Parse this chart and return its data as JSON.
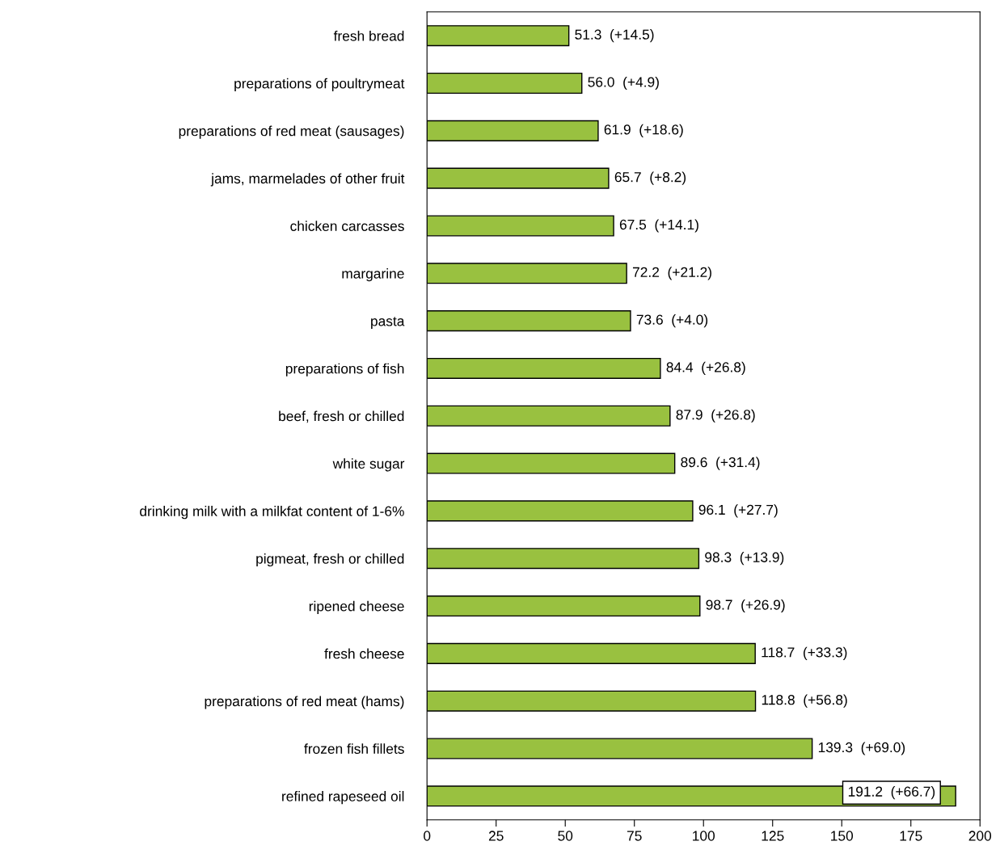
{
  "chart_data": {
    "type": "bar",
    "orientation": "horizontal",
    "categories": [
      "fresh bread",
      "preparations of poultrymeat",
      "preparations of red meat (sausages)",
      "jams, marmelades of other fruit",
      "chicken carcasses",
      "margarine",
      "pasta",
      "preparations of fish",
      "beef, fresh or chilled",
      "white sugar",
      "drinking milk with a milkfat content of 1-6%",
      "pigmeat, fresh or chilled",
      "ripened cheese",
      "fresh cheese",
      "preparations of red meat (hams)",
      "frozen fish fillets",
      "refined rapeseed oil"
    ],
    "values": [
      51.3,
      56.0,
      61.9,
      65.7,
      67.5,
      72.2,
      73.6,
      84.4,
      87.9,
      89.6,
      96.1,
      98.3,
      98.7,
      118.7,
      118.8,
      139.3,
      191.2
    ],
    "value_labels": [
      "51.3  (+14.5)",
      "56.0  (+4.9)",
      "61.9  (+18.6)",
      "65.7  (+8.2)",
      "67.5  (+14.1)",
      "72.2  (+21.2)",
      "73.6  (+4.0)",
      "84.4  (+26.8)",
      "87.9  (+26.8)",
      "89.6  (+31.4)",
      "96.1  (+27.7)",
      "98.3  (+13.9)",
      "98.7  (+26.9)",
      "118.7  (+33.3)",
      "118.8  (+56.8)",
      "139.3  (+69.0)",
      "191.2  (+66.7)"
    ],
    "color": "#99c140",
    "xlim": [
      0,
      200
    ],
    "xticks": [
      0,
      25,
      50,
      75,
      100,
      125,
      150,
      175,
      200
    ],
    "grid": false,
    "legend": false
  }
}
